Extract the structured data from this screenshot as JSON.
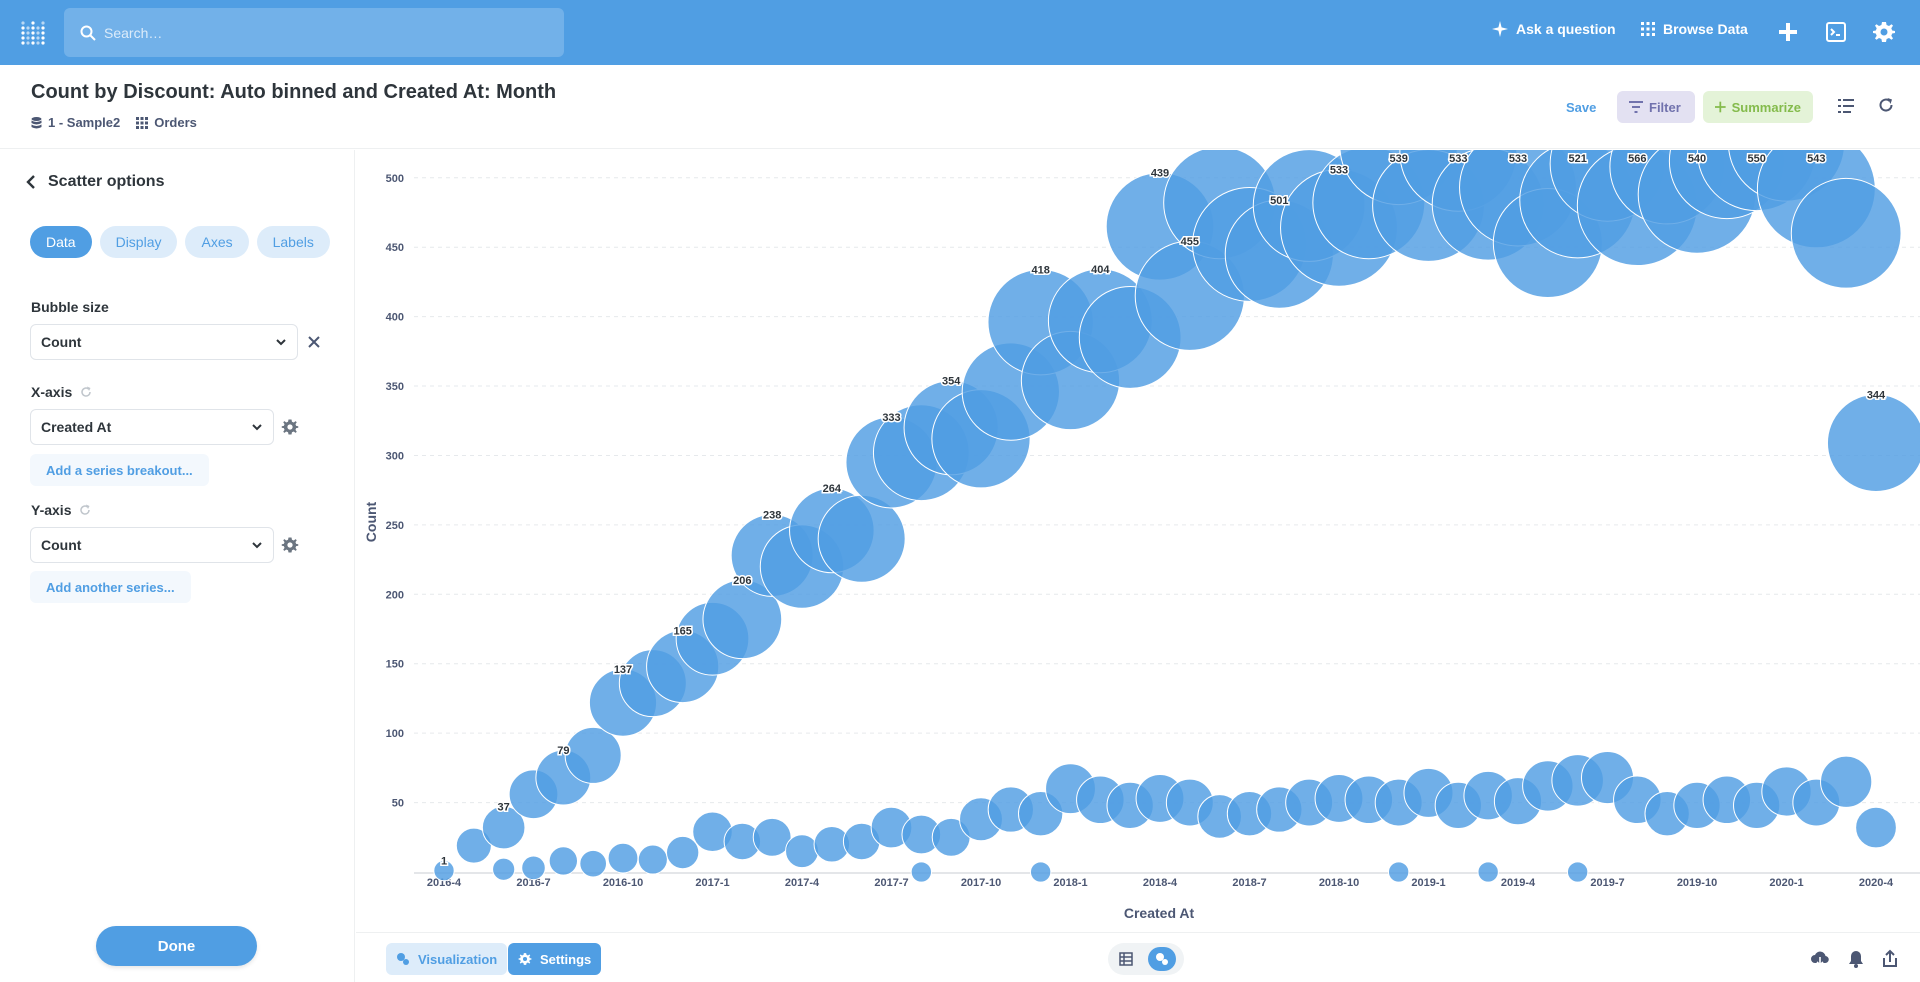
{
  "nav": {
    "search_placeholder": "Search…",
    "ask_label": "Ask a question",
    "browse_label": "Browse Data"
  },
  "header": {
    "title": "Count by Discount: Auto binned and Created At: Month",
    "database": "1 - Sample2",
    "table": "Orders",
    "save_label": "Save",
    "filter_label": "Filter",
    "summarize_label": "Summarize"
  },
  "sidebar": {
    "back_label": "Scatter options",
    "tabs": [
      "Data",
      "Display",
      "Axes",
      "Labels"
    ],
    "active_tab": "Data",
    "bubble_label": "Bubble size",
    "bubble_value": "Count",
    "x_label": "X-axis",
    "x_value": "Created At",
    "add_breakout": "Add a series breakout...",
    "y_label": "Y-axis",
    "y_value": "Count",
    "add_series": "Add another series...",
    "done_label": "Done"
  },
  "footer": {
    "viz_label": "Visualization",
    "settings_label": "Settings"
  },
  "colors": {
    "brand": "#509ee3",
    "bubble": "#509ee3",
    "filter": "#7172ad",
    "summarize": "#84bb4c"
  },
  "chart_data": {
    "type": "scatter",
    "xlabel": "Created At",
    "ylabel": "Count",
    "x_ticks": [
      "2016-4",
      "2016-7",
      "2016-10",
      "2017-1",
      "2017-4",
      "2017-7",
      "2017-10",
      "2018-1",
      "2018-4",
      "2018-7",
      "2018-10",
      "2019-1",
      "2019-4",
      "2019-7",
      "2019-10",
      "2020-1",
      "2020-4"
    ],
    "y_ticks": [
      50,
      100,
      150,
      200,
      250,
      300,
      350,
      400,
      450,
      500
    ],
    "ylim": [
      0,
      520
    ],
    "grid": "horizontal dashed",
    "bubble_size": "Count",
    "data_labels": [
      {
        "x": "2016-04",
        "label": "1"
      },
      {
        "x": "2016-06",
        "label": "37"
      },
      {
        "x": "2016-08",
        "label": "79"
      },
      {
        "x": "2016-10",
        "label": "137"
      },
      {
        "x": "2016-12",
        "label": "165"
      },
      {
        "x": "2017-02",
        "label": "206"
      },
      {
        "x": "2017-03",
        "label": "238"
      },
      {
        "x": "2017-05",
        "label": "264"
      },
      {
        "x": "2017-07",
        "label": "333"
      },
      {
        "x": "2017-09",
        "label": "354"
      },
      {
        "x": "2017-12",
        "label": "418"
      },
      {
        "x": "2018-02",
        "label": "404"
      },
      {
        "x": "2018-04",
        "label": "439"
      },
      {
        "x": "2018-05",
        "label": "455"
      },
      {
        "x": "2018-08",
        "label": "501"
      },
      {
        "x": "2018-10",
        "label": "533"
      },
      {
        "x": "2018-12",
        "label": "539"
      },
      {
        "x": "2019-02",
        "label": "533"
      },
      {
        "x": "2019-04",
        "label": "533"
      },
      {
        "x": "2019-06",
        "label": "521"
      },
      {
        "x": "2019-08",
        "label": "566"
      },
      {
        "x": "2019-10",
        "label": "540"
      },
      {
        "x": "2019-12",
        "label": "550"
      },
      {
        "x": "2020-02",
        "label": "543"
      },
      {
        "x": "2020-04",
        "label": "344"
      }
    ],
    "series": [
      {
        "points": [
          {
            "x": "2016-04",
            "y": 1,
            "size": 1
          },
          {
            "x": "2016-05",
            "y": 19,
            "size": 19
          },
          {
            "x": "2016-06",
            "y": 32,
            "size": 37
          },
          {
            "x": "2016-07",
            "y": 56,
            "size": 56
          },
          {
            "x": "2016-08",
            "y": 68,
            "size": 79
          },
          {
            "x": "2016-09",
            "y": 84,
            "size": 84
          },
          {
            "x": "2016-10",
            "y": 122,
            "size": 137
          },
          {
            "x": "2016-11",
            "y": 136,
            "size": 136
          },
          {
            "x": "2016-12",
            "y": 148,
            "size": 165
          },
          {
            "x": "2017-01",
            "y": 168,
            "size": 168
          },
          {
            "x": "2017-02",
            "y": 182,
            "size": 206
          },
          {
            "x": "2017-03",
            "y": 228,
            "size": 228
          },
          {
            "x": "2017-04",
            "y": 220,
            "size": 238
          },
          {
            "x": "2017-05",
            "y": 246,
            "size": 246
          },
          {
            "x": "2017-06",
            "y": 240,
            "size": 264
          },
          {
            "x": "2017-07",
            "y": 295,
            "size": 295
          },
          {
            "x": "2017-08",
            "y": 302,
            "size": 333
          },
          {
            "x": "2017-09",
            "y": 320,
            "size": 320
          },
          {
            "x": "2017-10",
            "y": 312,
            "size": 354
          },
          {
            "x": "2017-11",
            "y": 346,
            "size": 346
          },
          {
            "x": "2017-12",
            "y": 396,
            "size": 418
          },
          {
            "x": "2018-01",
            "y": 354,
            "size": 354
          },
          {
            "x": "2018-02",
            "y": 397,
            "size": 404
          },
          {
            "x": "2018-03",
            "y": 385,
            "size": 385
          },
          {
            "x": "2018-04",
            "y": 465,
            "size": 439
          },
          {
            "x": "2018-05",
            "y": 415,
            "size": 455
          },
          {
            "x": "2018-06",
            "y": 482,
            "size": 482
          },
          {
            "x": "2018-07",
            "y": 452,
            "size": 501
          },
          {
            "x": "2018-08",
            "y": 445,
            "size": 445
          },
          {
            "x": "2018-09",
            "y": 480,
            "size": 480
          },
          {
            "x": "2018-10",
            "y": 464,
            "size": 533
          },
          {
            "x": "2018-11",
            "y": 482,
            "size": 482
          },
          {
            "x": "2018-12",
            "y": 523,
            "size": 539
          },
          {
            "x": "2019-01",
            "y": 480,
            "size": 480
          },
          {
            "x": "2019-02",
            "y": 518,
            "size": 533
          },
          {
            "x": "2019-03",
            "y": 481,
            "size": 481
          },
          {
            "x": "2019-04",
            "y": 493,
            "size": 533
          },
          {
            "x": "2019-05",
            "y": 453,
            "size": 453
          },
          {
            "x": "2019-06",
            "y": 484,
            "size": 521
          },
          {
            "x": "2019-07",
            "y": 510,
            "size": 510
          },
          {
            "x": "2019-08",
            "y": 480,
            "size": 566
          },
          {
            "x": "2019-09",
            "y": 508,
            "size": 508
          },
          {
            "x": "2019-10",
            "y": 488,
            "size": 540
          },
          {
            "x": "2019-11",
            "y": 512,
            "size": 512
          },
          {
            "x": "2019-12",
            "y": 519,
            "size": 550
          },
          {
            "x": "2020-01",
            "y": 525,
            "size": 525
          },
          {
            "x": "2020-02",
            "y": 492,
            "size": 543
          },
          {
            "x": "2020-03",
            "y": 460,
            "size": 460
          },
          {
            "x": "2020-04",
            "y": 309,
            "size": 344
          }
        ]
      },
      {
        "points": [
          {
            "x": "2016-06",
            "y": 2,
            "size": 2
          },
          {
            "x": "2016-07",
            "y": 3,
            "size": 3
          },
          {
            "x": "2016-08",
            "y": 8,
            "size": 8
          },
          {
            "x": "2016-09",
            "y": 6,
            "size": 6
          },
          {
            "x": "2016-10",
            "y": 10,
            "size": 10
          },
          {
            "x": "2016-11",
            "y": 9,
            "size": 9
          },
          {
            "x": "2016-12",
            "y": 14,
            "size": 14
          },
          {
            "x": "2017-01",
            "y": 29,
            "size": 29
          },
          {
            "x": "2017-02",
            "y": 22,
            "size": 22
          },
          {
            "x": "2017-03",
            "y": 25,
            "size": 25
          },
          {
            "x": "2017-04",
            "y": 15,
            "size": 15
          },
          {
            "x": "2017-05",
            "y": 20,
            "size": 20
          },
          {
            "x": "2017-06",
            "y": 22,
            "size": 22
          },
          {
            "x": "2017-07",
            "y": 32,
            "size": 32
          },
          {
            "x": "2017-08",
            "y": 27,
            "size": 27
          },
          {
            "x": "2017-09",
            "y": 25,
            "size": 25
          },
          {
            "x": "2017-10",
            "y": 38,
            "size": 38
          },
          {
            "x": "2017-11",
            "y": 45,
            "size": 45
          },
          {
            "x": "2017-12",
            "y": 42,
            "size": 42
          },
          {
            "x": "2018-01",
            "y": 60,
            "size": 60
          },
          {
            "x": "2018-02",
            "y": 52,
            "size": 52
          },
          {
            "x": "2018-03",
            "y": 48,
            "size": 48
          },
          {
            "x": "2018-04",
            "y": 53,
            "size": 53
          },
          {
            "x": "2018-05",
            "y": 50,
            "size": 50
          },
          {
            "x": "2018-06",
            "y": 40,
            "size": 40
          },
          {
            "x": "2018-07",
            "y": 42,
            "size": 42
          },
          {
            "x": "2018-08",
            "y": 45,
            "size": 45
          },
          {
            "x": "2018-09",
            "y": 50,
            "size": 50
          },
          {
            "x": "2018-10",
            "y": 53,
            "size": 53
          },
          {
            "x": "2018-11",
            "y": 52,
            "size": 52
          },
          {
            "x": "2018-12",
            "y": 50,
            "size": 50
          },
          {
            "x": "2019-01",
            "y": 57,
            "size": 57
          },
          {
            "x": "2019-02",
            "y": 48,
            "size": 48
          },
          {
            "x": "2019-03",
            "y": 55,
            "size": 55
          },
          {
            "x": "2019-04",
            "y": 51,
            "size": 51
          },
          {
            "x": "2019-05",
            "y": 62,
            "size": 62
          },
          {
            "x": "2019-06",
            "y": 66,
            "size": 66
          },
          {
            "x": "2019-07",
            "y": 68,
            "size": 68
          },
          {
            "x": "2019-08",
            "y": 52,
            "size": 52
          },
          {
            "x": "2019-09",
            "y": 42,
            "size": 42
          },
          {
            "x": "2019-10",
            "y": 48,
            "size": 48
          },
          {
            "x": "2019-11",
            "y": 52,
            "size": 52
          },
          {
            "x": "2019-12",
            "y": 48,
            "size": 48
          },
          {
            "x": "2020-01",
            "y": 58,
            "size": 58
          },
          {
            "x": "2020-02",
            "y": 50,
            "size": 50
          },
          {
            "x": "2020-03",
            "y": 65,
            "size": 65
          },
          {
            "x": "2020-04",
            "y": 32,
            "size": 32
          }
        ]
      },
      {
        "points": [
          {
            "x": "2017-08",
            "y": 0,
            "size": 1
          },
          {
            "x": "2017-12",
            "y": 0,
            "size": 1
          },
          {
            "x": "2018-12",
            "y": 0,
            "size": 1
          },
          {
            "x": "2019-03",
            "y": 0,
            "size": 1
          },
          {
            "x": "2019-06",
            "y": 0,
            "size": 1
          }
        ]
      }
    ]
  }
}
